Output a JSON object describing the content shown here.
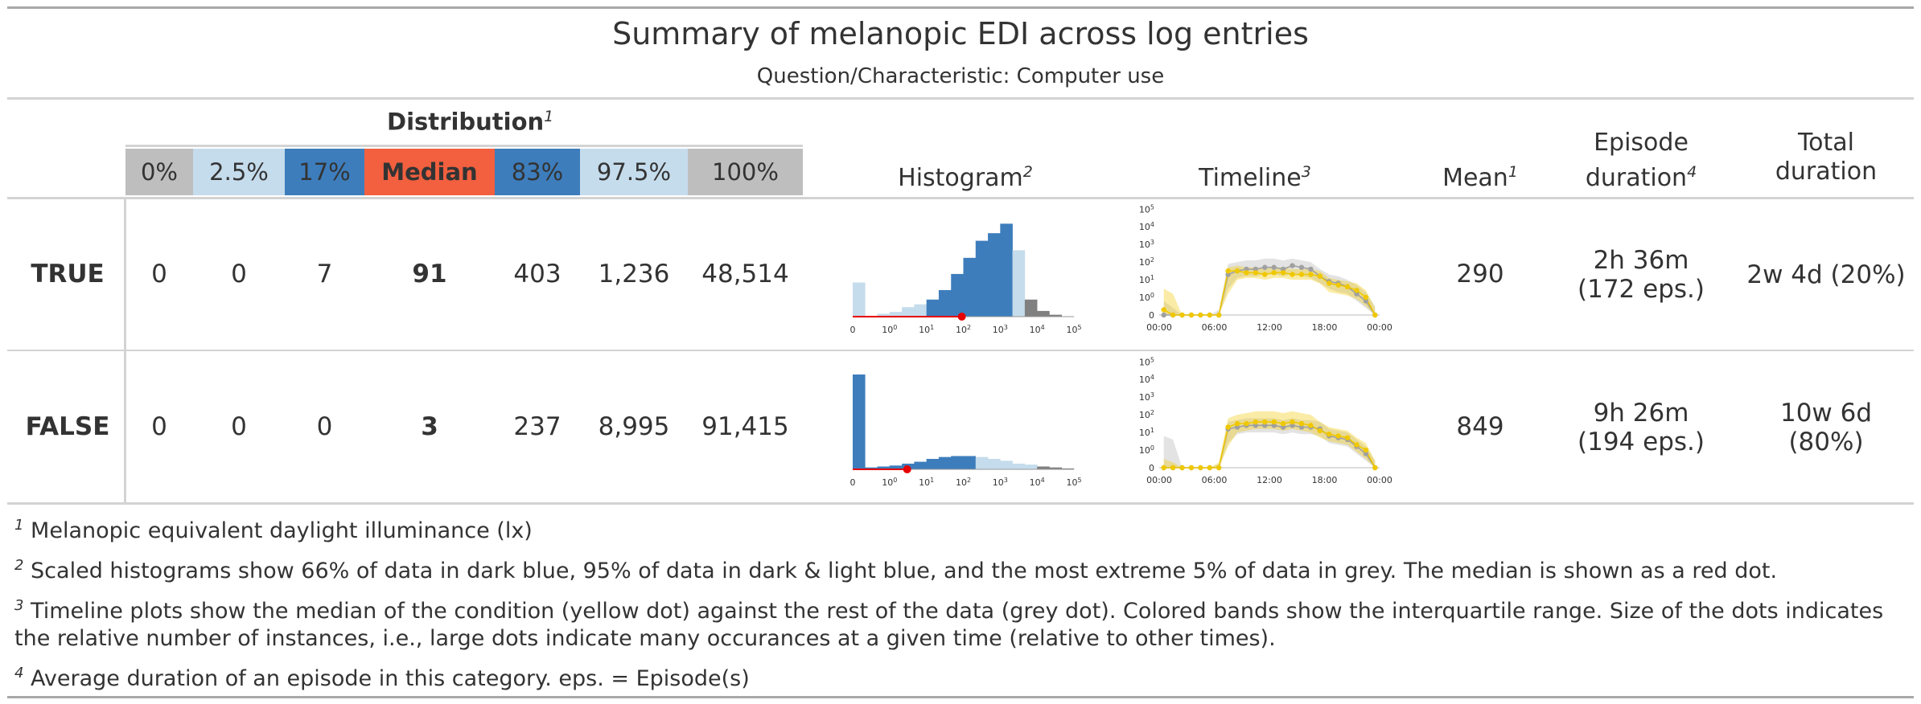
{
  "title": "Summary of melanopic EDI across log entries",
  "subtitle": "Question/Characteristic: Computer use",
  "distribution": {
    "title": "Distribution",
    "title_note": "1",
    "quantiles": [
      {
        "label": "0%",
        "bg": "#bebebe"
      },
      {
        "label": "2.5%",
        "bg": "#c5dcec"
      },
      {
        "label": "17%",
        "bg": "#3d7dbc"
      },
      {
        "label": "Median",
        "bg": "#f2603f"
      },
      {
        "label": "83%",
        "bg": "#3d7dbc"
      },
      {
        "label": "97.5%",
        "bg": "#c5dcec"
      },
      {
        "label": "100%",
        "bg": "#bebebe"
      }
    ]
  },
  "headers": {
    "histogram": "Histogram",
    "histogram_note": "2",
    "timeline": "Timeline",
    "timeline_note": "3",
    "mean": "Mean",
    "mean_note": "1",
    "episode_line1": "Episode",
    "episode_line2": "duration",
    "episode_note": "4",
    "total_line1": "Total",
    "total_line2": "duration"
  },
  "rows": [
    {
      "label": "TRUE",
      "values": [
        "0",
        "0",
        "7",
        "91",
        "403",
        "1,236",
        "48,514"
      ],
      "mean": "290",
      "episode_line1": "2h 36m",
      "episode_line2": "(172 eps.)",
      "total_line1": "2w 4d (20%)",
      "total_line2": ""
    },
    {
      "label": "FALSE",
      "values": [
        "0",
        "0",
        "0",
        "3",
        "237",
        "8,995",
        "91,415"
      ],
      "mean": "849",
      "episode_line1": "9h 26m",
      "episode_line2": "(194 eps.)",
      "total_line1": "10w 6d",
      "total_line2": "(80%)"
    }
  ],
  "footnotes": [
    {
      "mark": "1",
      "text": "Melanopic equivalent daylight illuminance (lx)"
    },
    {
      "mark": "2",
      "text": "Scaled histograms show 66% of data in dark blue, 95% of data in dark & light blue, and the most extreme 5% of data in grey. The median is shown as a red dot."
    },
    {
      "mark": "3",
      "text": "Timeline plots show the median of the condition (yellow dot) against the rest of the data (grey dot). Colored bands show the interquartile range. Size of the dots indicates the relative number of instances, i.e., large dots indicate many occurances at a given time (relative to other times)."
    },
    {
      "mark": "4",
      "text": "Average duration of an episode in this category. eps. = Episode(s)"
    }
  ],
  "colors": {
    "dark_blue": "#3d7dbc",
    "light_blue": "#c5dcec",
    "grey": "#bebebe",
    "median_red": "#e60000",
    "timeline_yellow": "#f0c800",
    "timeline_grey": "#a0a0a0"
  },
  "chart_data": [
    {
      "type": "bar",
      "title": "Histogram — TRUE",
      "xscale": "pseudo-log10",
      "x_tick_labels": [
        "0",
        "10^0",
        "10^1",
        "10^2",
        "10^3",
        "10^4",
        "10^5"
      ],
      "bin_heights_scaled": [
        0.36,
        0.0,
        0.03,
        0.05,
        0.1,
        0.13,
        0.18,
        0.28,
        0.45,
        0.62,
        0.8,
        0.88,
        0.98,
        0.7,
        0.18,
        0.06,
        0.02,
        0.0
      ],
      "bin_class": [
        "light",
        "light",
        "light",
        "light",
        "light",
        "light",
        "dark",
        "dark",
        "dark",
        "dark",
        "dark",
        "dark",
        "dark",
        "light",
        "grey",
        "grey",
        "grey",
        "grey"
      ],
      "median": 91
    },
    {
      "type": "bar",
      "title": "Histogram — FALSE",
      "xscale": "pseudo-log10",
      "x_tick_labels": [
        "0",
        "10^0",
        "10^1",
        "10^2",
        "10^3",
        "10^4",
        "10^5"
      ],
      "bin_heights_scaled": [
        1.0,
        0.02,
        0.03,
        0.04,
        0.06,
        0.08,
        0.11,
        0.13,
        0.14,
        0.14,
        0.13,
        0.11,
        0.09,
        0.06,
        0.05,
        0.03,
        0.02,
        0.01
      ],
      "bin_class": [
        "dark",
        "dark",
        "dark",
        "dark",
        "dark",
        "dark",
        "dark",
        "dark",
        "dark",
        "dark",
        "light",
        "light",
        "light",
        "light",
        "light",
        "grey",
        "grey",
        "grey"
      ],
      "median": 3
    },
    {
      "type": "line",
      "title": "Timeline — TRUE",
      "yscale": "pseudo-log10",
      "y_tick_labels": [
        "0",
        "10^0",
        "10^1",
        "10^2",
        "10^3",
        "10^4",
        "10^5"
      ],
      "x_tick_labels": [
        "00:00",
        "06:00",
        "12:00",
        "18:00",
        "00:00"
      ],
      "x_hours": [
        0,
        1,
        2,
        3,
        4,
        5,
        6,
        7,
        8,
        9,
        10,
        11,
        12,
        13,
        14,
        15,
        16,
        17,
        18,
        19,
        20,
        21,
        22,
        23
      ],
      "condition_median": [
        0.3,
        0.0,
        0,
        0,
        0,
        0,
        0,
        2.5,
        2.5,
        2.4,
        2.4,
        2.3,
        2.4,
        2.4,
        2.3,
        2.3,
        2.3,
        2.2,
        1.8,
        1.7,
        1.6,
        1.4,
        1.0,
        0.0
      ],
      "condition_band_low": [
        0.0,
        0.0,
        0,
        0,
        0,
        0,
        0,
        1.2,
        2.0,
        2.1,
        2.1,
        2.0,
        2.1,
        2.1,
        2.0,
        2.0,
        2.0,
        1.8,
        1.3,
        1.2,
        1.1,
        0.9,
        0.5,
        0.0
      ],
      "condition_band_high": [
        1.5,
        1.2,
        0,
        0,
        0,
        0,
        0,
        2.7,
        2.8,
        2.7,
        2.7,
        2.6,
        2.7,
        2.7,
        2.6,
        2.6,
        2.6,
        2.5,
        2.1,
        2.0,
        1.9,
        1.8,
        1.4,
        0.4
      ],
      "rest_median": [
        0.0,
        0.0,
        0,
        0,
        0,
        0,
        0,
        2.3,
        2.5,
        2.6,
        2.6,
        2.7,
        2.7,
        2.6,
        2.8,
        2.7,
        2.6,
        2.2,
        1.9,
        1.8,
        1.6,
        1.2,
        0.8,
        0.0
      ],
      "rest_band_low": [
        0.0,
        0.0,
        0,
        0,
        0,
        0,
        0,
        1.5,
        2.1,
        2.2,
        2.2,
        2.3,
        2.3,
        2.2,
        2.3,
        2.2,
        2.1,
        1.8,
        1.5,
        1.3,
        1.2,
        0.8,
        0.4,
        0.0
      ],
      "rest_band_high": [
        0.8,
        0.4,
        0,
        0,
        0,
        0,
        0.3,
        2.9,
        3.0,
        3.1,
        3.1,
        3.2,
        3.2,
        3.1,
        3.2,
        3.1,
        3.0,
        2.6,
        2.3,
        2.2,
        2.0,
        1.7,
        1.3,
        0.5
      ]
    },
    {
      "type": "line",
      "title": "Timeline — FALSE",
      "yscale": "pseudo-log10",
      "y_tick_labels": [
        "0",
        "10^0",
        "10^1",
        "10^2",
        "10^3",
        "10^4",
        "10^5"
      ],
      "x_tick_labels": [
        "00:00",
        "06:00",
        "12:00",
        "18:00",
        "00:00"
      ],
      "x_hours": [
        0,
        1,
        2,
        3,
        4,
        5,
        6,
        7,
        8,
        9,
        10,
        11,
        12,
        13,
        14,
        15,
        16,
        17,
        18,
        19,
        20,
        21,
        22,
        23
      ],
      "condition_median": [
        0.0,
        0,
        0,
        0,
        0,
        0,
        0,
        2.3,
        2.5,
        2.5,
        2.6,
        2.6,
        2.6,
        2.5,
        2.6,
        2.5,
        2.4,
        2.1,
        1.9,
        1.8,
        1.7,
        1.3,
        1.0,
        0.0
      ],
      "condition_band_low": [
        0.0,
        0,
        0,
        0,
        0,
        0,
        0,
        1.2,
        2.0,
        2.1,
        2.2,
        2.2,
        2.2,
        2.1,
        2.2,
        2.1,
        2.0,
        1.7,
        1.5,
        1.4,
        1.3,
        0.9,
        0.5,
        0.0
      ],
      "condition_band_high": [
        0.5,
        0.3,
        0,
        0,
        0,
        0,
        0.3,
        2.8,
        3.0,
        3.1,
        3.2,
        3.2,
        3.2,
        3.1,
        3.2,
        3.1,
        3.0,
        2.6,
        2.3,
        2.2,
        2.1,
        1.7,
        1.4,
        0.4
      ],
      "rest_median": [
        0.0,
        0,
        0,
        0,
        0,
        0,
        0,
        2.2,
        2.3,
        2.4,
        2.4,
        2.4,
        2.4,
        2.3,
        2.4,
        2.3,
        2.3,
        2.2,
        1.8,
        1.7,
        1.6,
        1.2,
        0.8,
        0.0
      ],
      "rest_band_low": [
        0.0,
        0,
        0,
        0,
        0,
        0,
        0,
        1.4,
        1.9,
        2.0,
        2.0,
        2.0,
        2.0,
        1.9,
        2.0,
        1.9,
        1.9,
        1.8,
        1.4,
        1.3,
        1.2,
        0.8,
        0.4,
        0.0
      ],
      "rest_band_high": [
        1.8,
        1.6,
        0,
        0,
        0,
        0,
        0.2,
        2.6,
        2.7,
        2.8,
        2.8,
        2.8,
        2.8,
        2.7,
        2.8,
        2.7,
        2.7,
        2.6,
        2.2,
        2.1,
        2.0,
        1.6,
        1.2,
        0.4
      ]
    }
  ]
}
